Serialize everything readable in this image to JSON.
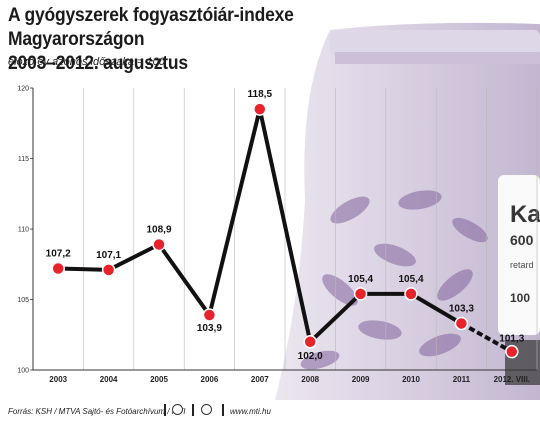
{
  "title_line1": "A gyógyszerek fogyasztóiár-indexe Magyarországon",
  "title_line2": "2003–2012. augusztus",
  "subtitle": "előző év azonos időszaka = 100",
  "footer": {
    "source": "Forrás: KSH / MTVA Sajtó- és Fotóarchívum / MTI",
    "website": "www.mti.hu"
  },
  "photo": {
    "label_line1": "Kal",
    "label_line2": "600",
    "label_line3": "retard",
    "label_line4": "100"
  },
  "chart_data": {
    "type": "line",
    "title": "A gyógyszerek fogyasztóiár-indexe Magyarországon 2003–2012. augusztus",
    "ylabel": "előző év azonos időszaka = 100",
    "categories": [
      "2003",
      "2004",
      "2005",
      "2006",
      "2007",
      "2008",
      "2009",
      "2010",
      "2011",
      "2012. VIII."
    ],
    "values": [
      107.2,
      107.1,
      108.9,
      103.9,
      118.5,
      102.0,
      105.4,
      105.4,
      103.3,
      101.3
    ],
    "value_labels": [
      "107,2",
      "107,1",
      "108,9",
      "103,9",
      "118,5",
      "102,0",
      "105,4",
      "105,4",
      "103,3",
      "101,3"
    ],
    "ylim": [
      100,
      120
    ],
    "yticks": [
      "100",
      "105",
      "110",
      "115",
      "120"
    ],
    "last_segment_dashed": true,
    "grid": "vertical",
    "colors": {
      "line": "#111111",
      "marker": "#e8232a"
    }
  }
}
